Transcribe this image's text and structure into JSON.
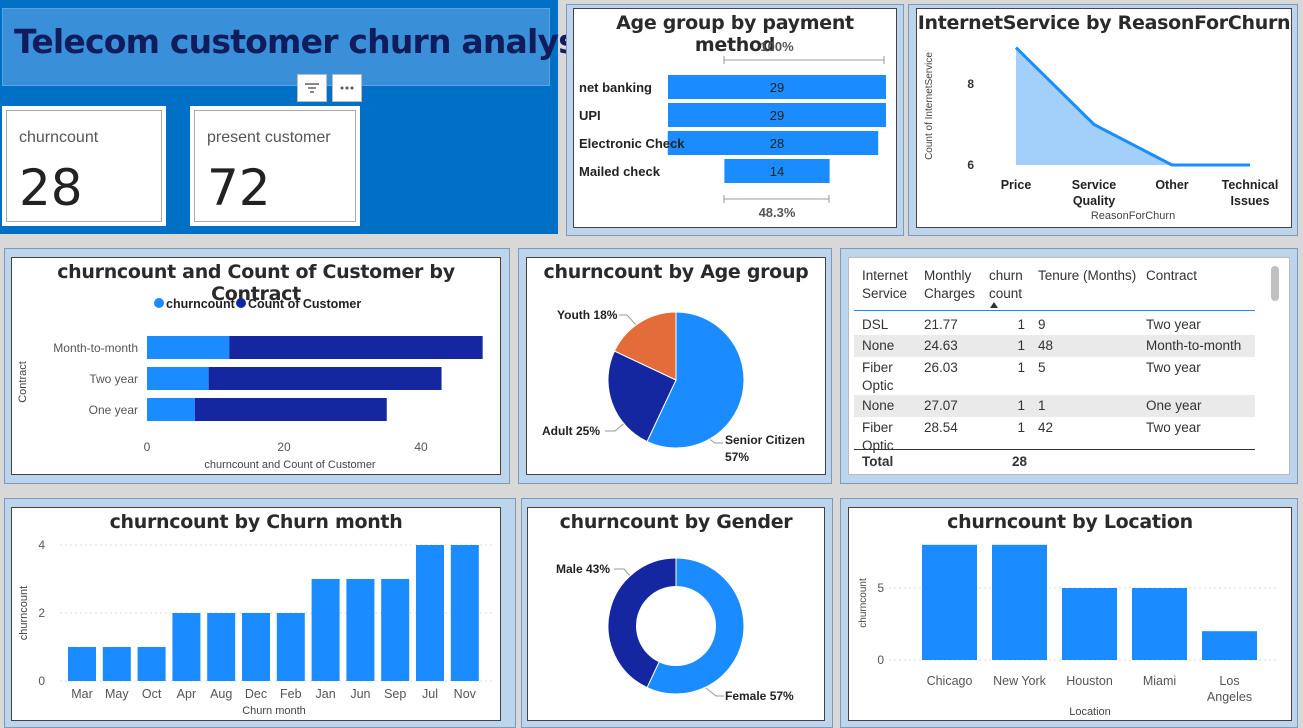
{
  "header": {
    "title": "Telecom customer churn analysis"
  },
  "kpis": [
    {
      "label": "churncount",
      "value": "28"
    },
    {
      "label": "present customer",
      "value": "72"
    }
  ],
  "icons": {
    "filter": "filter-icon",
    "more": "more-options-icon"
  },
  "colors": {
    "primary": "#1a8cff",
    "dark": "#1426a0",
    "orange": "#e46c3a",
    "light_area": "#a3d0fb",
    "header_bg": "#0070c6"
  },
  "funnel": {
    "title": "Age group by payment method",
    "top_label": "100%",
    "bottom_label": "48.3%",
    "rows": [
      {
        "label": "net banking",
        "value": 29
      },
      {
        "label": "UPI",
        "value": 29
      },
      {
        "label": "Electronic Check",
        "value": 28
      },
      {
        "label": "Mailed check",
        "value": 14
      }
    ]
  },
  "area": {
    "title": "InternetService by ReasonForChurn",
    "ylabel": "Count of InternetService",
    "xlabel": "ReasonForChurn",
    "yticks": [
      "8",
      "6"
    ],
    "xticks": [
      [
        "Price"
      ],
      [
        "Service",
        "Quality"
      ],
      [
        "Other"
      ],
      [
        "Technical",
        "Issues"
      ]
    ]
  },
  "contract_chart": {
    "title": "churncount and Count of Customer by Contract",
    "legend": [
      "churncount",
      "Count of Customer"
    ],
    "ylabel": "Contract",
    "xlabel": "churncount and Count of Customer",
    "xticks": [
      "0",
      "20",
      "40"
    ]
  },
  "age_pie": {
    "title": "churncount by Age group",
    "labels": [
      "Youth 18%",
      "Adult 25%",
      "Senior Citizen",
      "57%"
    ]
  },
  "table": {
    "headers": [
      [
        "Internet",
        "Service"
      ],
      [
        "Monthly",
        "Charges"
      ],
      [
        "churn",
        "count"
      ],
      [
        "Tenure (Months)"
      ],
      [
        "Contract"
      ]
    ],
    "rows": [
      [
        [
          "DSL"
        ],
        "21.77",
        "1",
        "9",
        "Two year"
      ],
      [
        [
          "None"
        ],
        "24.63",
        "1",
        "48",
        "Month-to-month"
      ],
      [
        [
          "Fiber",
          "Optic"
        ],
        "26.03",
        "1",
        "5",
        "Two year"
      ],
      [
        [
          "None"
        ],
        "27.07",
        "1",
        "1",
        "One year"
      ],
      [
        [
          "Fiber",
          "Optic"
        ],
        "28.54",
        "1",
        "42",
        "Two year"
      ]
    ],
    "total_label": "Total",
    "total_value": "28"
  },
  "month_chart": {
    "title": "churncount by Churn month",
    "ylabel": "churncount",
    "xlabel": "Churn month",
    "yticks": [
      "4",
      "2",
      "0"
    ]
  },
  "gender_chart": {
    "title": "churncount by Gender",
    "labels": [
      "Male 43%",
      "Female 57%"
    ]
  },
  "location_chart": {
    "title": "churncount by Location",
    "ylabel": "churncount",
    "xlabel": "Location",
    "yticks": [
      "5",
      "0"
    ],
    "xticks": [
      [
        "Chicago"
      ],
      [
        "New York"
      ],
      [
        "Houston"
      ],
      [
        "Miami"
      ],
      [
        "Los",
        "Angeles"
      ]
    ]
  },
  "chart_data": [
    {
      "type": "bar",
      "title": "Age group by payment method",
      "categories": [
        "net banking",
        "UPI",
        "Electronic Check",
        "Mailed check"
      ],
      "values": [
        29,
        29,
        28,
        14
      ]
    },
    {
      "type": "area",
      "title": "InternetService by ReasonForChurn",
      "xlabel": "ReasonForChurn",
      "ylabel": "Count of InternetService",
      "categories": [
        "Price",
        "Service Quality",
        "Other",
        "Technical Issues"
      ],
      "values": [
        8.9,
        7,
        6,
        6
      ],
      "ylim": [
        6,
        9
      ]
    },
    {
      "type": "bar",
      "title": "churncount and Count of Customer by Contract",
      "xlabel": "churncount and Count of Customer",
      "ylabel": "Contract",
      "categories": [
        "Month-to-month",
        "Two year",
        "One year"
      ],
      "series": [
        {
          "name": "churncount",
          "values": [
            12,
            9,
            7
          ]
        },
        {
          "name": "Count of Customer",
          "values": [
            37,
            34,
            28
          ]
        }
      ],
      "xlim": [
        0,
        50
      ]
    },
    {
      "type": "pie",
      "title": "churncount by Age group",
      "categories": [
        "Senior Citizen",
        "Adult",
        "Youth"
      ],
      "values": [
        57,
        25,
        18
      ]
    },
    {
      "type": "bar",
      "title": "churncount by Churn month",
      "xlabel": "Churn month",
      "ylabel": "churncount",
      "categories": [
        "Mar",
        "May",
        "Oct",
        "Apr",
        "Aug",
        "Dec",
        "Feb",
        "Jan",
        "Jun",
        "Sep",
        "Jul",
        "Nov"
      ],
      "values": [
        1,
        1,
        1,
        2,
        2,
        2,
        2,
        3,
        3,
        3,
        4,
        4
      ],
      "ylim": [
        0,
        4
      ]
    },
    {
      "type": "pie",
      "title": "churncount by Gender",
      "categories": [
        "Female",
        "Male"
      ],
      "values": [
        57,
        43
      ]
    },
    {
      "type": "bar",
      "title": "churncount by Location",
      "xlabel": "Location",
      "ylabel": "churncount",
      "categories": [
        "Chicago",
        "New York",
        "Houston",
        "Miami",
        "Los Angeles"
      ],
      "values": [
        8,
        8,
        5,
        5,
        2
      ],
      "ylim": [
        0,
        8
      ]
    }
  ]
}
